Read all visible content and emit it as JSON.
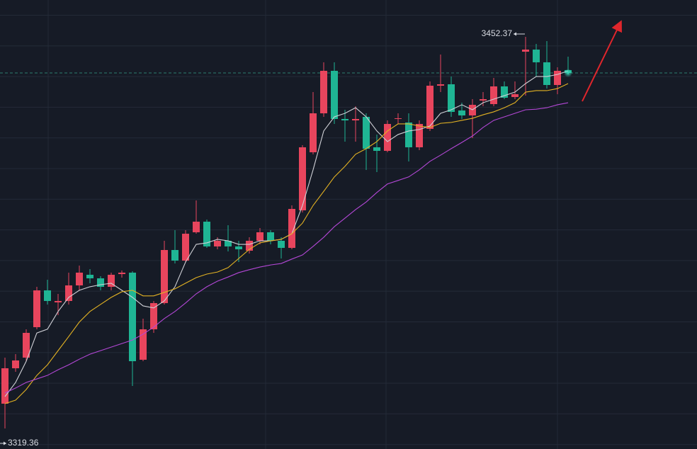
{
  "chart_data": {
    "type": "candlestick",
    "ylim": [
      3312.4,
      3464.88
    ],
    "grid": true,
    "up_color": "#e8455d",
    "down_color": "#1fb594",
    "open": [
      3327.79,
      3339.82,
      3343.43,
      3353.77,
      3366.27,
      3362.19,
      3362.67,
      3367.96,
      3371.57,
      3370.36,
      3367.48,
      3371.81,
      3372.29,
      3342.71,
      3353.05,
      3361.95,
      3379.98,
      3376.38,
      3386.0,
      3389.6,
      3381.19,
      3383.11,
      3381.19,
      3379.74,
      3383.11,
      3386.0,
      3383.11,
      3380.7,
      3393.45,
      3413.17,
      3426.4,
      3440.83,
      3424.48,
      3423.99,
      3425.2,
      3414.86,
      3413.65,
      3424.48,
      3423.27,
      3414.86,
      3421.11,
      3435.78,
      3436.26,
      3427.36,
      3425.68,
      3430.73,
      3429.53,
      3435.54,
      3431.93,
      3447.32,
      3448.04,
      3443.72,
      3436.02,
      3441.07
    ],
    "high": [
      3343.43,
      3344.63,
      3353.05,
      3367.48,
      3369.88,
      3365.07,
      3372.29,
      3374.69,
      3373.49,
      3371.08,
      3372.29,
      3373.01,
      3372.77,
      3356.65,
      3362.67,
      3383.11,
      3386.72,
      3386.72,
      3396.82,
      3390.32,
      3384.31,
      3388.4,
      3383.11,
      3384.31,
      3387.44,
      3386.72,
      3384.31,
      3395.13,
      3415.58,
      3433.61,
      3443.72,
      3443.72,
      3427.6,
      3428.8,
      3426.4,
      3419.18,
      3423.99,
      3426.4,
      3426.4,
      3423.99,
      3437.22,
      3446.36,
      3438.91,
      3430.01,
      3431.21,
      3433.61,
      3438.42,
      3437.22,
      3437.22,
      3452.37,
      3449.97,
      3450.93,
      3442.03,
      3445.64
    ],
    "low": [
      3319.36,
      3338.62,
      3342.22,
      3353.05,
      3361.46,
      3357.86,
      3361.46,
      3366.27,
      3368.68,
      3366.27,
      3366.27,
      3370.6,
      3333.81,
      3342.22,
      3351.84,
      3361.46,
      3375.41,
      3375.89,
      3385.51,
      3380.7,
      3380.22,
      3379.5,
      3375.89,
      3378.78,
      3381.91,
      3381.91,
      3377.1,
      3380.22,
      3392.73,
      3412.45,
      3425.2,
      3422.79,
      3416.78,
      3416.78,
      3407.16,
      3406.44,
      3413.17,
      3422.79,
      3410.05,
      3413.89,
      3420.39,
      3433.61,
      3425.2,
      3424.48,
      3417.98,
      3428.8,
      3428.8,
      3431.21,
      3431.21,
      3432.41,
      3438.91,
      3434.82,
      3432.89,
      3439.63
    ],
    "close": [
      3339.82,
      3342.47,
      3351.84,
      3366.27,
      3362.67,
      3362.67,
      3367.96,
      3372.29,
      3370.36,
      3367.48,
      3371.57,
      3372.29,
      3342.22,
      3353.05,
      3361.95,
      3379.98,
      3376.38,
      3385.51,
      3389.6,
      3381.19,
      3383.11,
      3381.19,
      3380.22,
      3383.11,
      3386.0,
      3383.11,
      3380.7,
      3393.93,
      3414.86,
      3426.4,
      3440.83,
      3424.48,
      3423.99,
      3424.48,
      3414.37,
      3413.65,
      3422.79,
      3424.72,
      3414.86,
      3422.79,
      3435.78,
      3436.26,
      3426.88,
      3425.68,
      3429.29,
      3431.21,
      3435.54,
      3431.69,
      3432.89,
      3448.04,
      3443.72,
      3436.02,
      3440.83,
      3440.11
    ],
    "lines": [
      {
        "color": "#cfd0d6",
        "values": [
          3330.2,
          3335.0,
          3342.2,
          3351.8,
          3353.1,
          3359.1,
          3363.9,
          3366.3,
          3367.5,
          3368.2,
          3368.7,
          3366.3,
          3363.9,
          3361.0,
          3360.3,
          3362.7,
          3367.5,
          3375.9,
          3381.9,
          3382.4,
          3383.6,
          3383.1,
          3381.9,
          3381.9,
          3383.1,
          3383.1,
          3383.6,
          3385.5,
          3395.1,
          3407.2,
          3420.4,
          3425.2,
          3426.4,
          3428.3,
          3425.2,
          3420.4,
          3416.8,
          3419.2,
          3420.4,
          3420.9,
          3422.1,
          3426.4,
          3427.6,
          3429.3,
          3427.6,
          3430.0,
          3431.2,
          3432.4,
          3433.6,
          3436.5,
          3438.9,
          3438.9,
          3439.6,
          3440.8
        ]
      },
      {
        "color": "#e3b223",
        "values": [
          3327.8,
          3329.0,
          3332.6,
          3337.4,
          3341.0,
          3345.8,
          3350.6,
          3355.5,
          3359.1,
          3361.5,
          3363.9,
          3365.8,
          3366.3,
          3364.4,
          3364.4,
          3365.6,
          3366.8,
          3368.7,
          3370.6,
          3371.8,
          3372.5,
          3374.0,
          3377.1,
          3380.2,
          3382.4,
          3383.1,
          3383.6,
          3385.5,
          3389.1,
          3395.1,
          3399.9,
          3404.8,
          3408.4,
          3412.5,
          3414.4,
          3416.8,
          3420.4,
          3422.8,
          3422.8,
          3422.1,
          3421.6,
          3423.0,
          3423.3,
          3424.0,
          3424.7,
          3425.9,
          3426.9,
          3428.3,
          3430.0,
          3433.6,
          3434.1,
          3434.1,
          3434.8,
          3436.5
        ]
      },
      {
        "color": "#b347d6",
        "values": [
          3331.4,
          3333.1,
          3335.0,
          3336.2,
          3337.4,
          3339.3,
          3341.0,
          3342.9,
          3344.6,
          3345.8,
          3347.0,
          3348.2,
          3349.4,
          3351.4,
          3353.8,
          3356.7,
          3359.1,
          3362.0,
          3365.1,
          3367.5,
          3369.4,
          3370.8,
          3372.3,
          3373.3,
          3374.2,
          3374.9,
          3375.4,
          3376.9,
          3378.3,
          3381.2,
          3384.3,
          3387.9,
          3390.8,
          3393.7,
          3396.3,
          3399.5,
          3402.4,
          3403.6,
          3404.8,
          3407.2,
          3410.1,
          3412.2,
          3414.4,
          3416.5,
          3418.7,
          3421.6,
          3424.0,
          3425.2,
          3426.4,
          3427.6,
          3427.8,
          3428.3,
          3429.3,
          3430.0
        ]
      }
    ]
  }
}
